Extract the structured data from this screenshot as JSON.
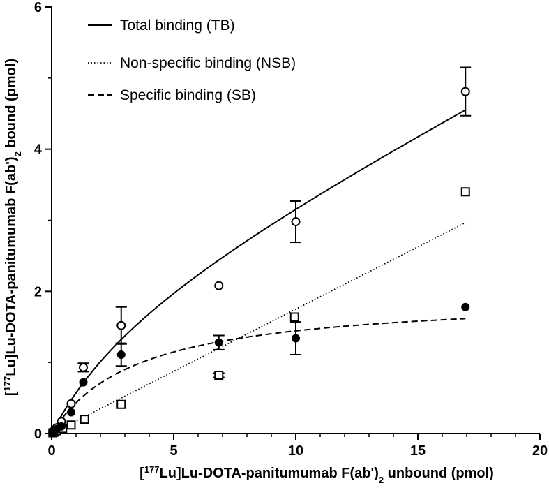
{
  "chart_data": {
    "type": "scatter",
    "title": "",
    "xlabel": {
      "parts": [
        {
          "text": "[",
          "style": "normal"
        },
        {
          "text": "177",
          "style": "sup"
        },
        {
          "text": "Lu]Lu-DOTA-panitumumab F(ab')",
          "style": "normal"
        },
        {
          "text": "2",
          "style": "sub"
        },
        {
          "text": " unbound (pmol)",
          "style": "normal"
        }
      ]
    },
    "ylabel": {
      "parts": [
        {
          "text": "[",
          "style": "normal"
        },
        {
          "text": "177",
          "style": "sup"
        },
        {
          "text": "Lu]Lu-DOTA-panitumumab F(ab')",
          "style": "normal"
        },
        {
          "text": "2",
          "style": "sub"
        },
        {
          "text": " bound (pmol)",
          "style": "normal"
        }
      ]
    },
    "xlim": [
      0,
      20
    ],
    "ylim": [
      0,
      6
    ],
    "xticks": [
      0,
      5,
      10,
      15,
      20
    ],
    "yticks": [
      0,
      2,
      4,
      6
    ],
    "grid": false,
    "legend_position": "top-left",
    "series": [
      {
        "name": "Total binding (TB)",
        "marker": "open-circle",
        "line_style": "solid",
        "points": [
          {
            "x": 0.05,
            "y": 0.02
          },
          {
            "x": 0.1,
            "y": 0.04
          },
          {
            "x": 0.2,
            "y": 0.08
          },
          {
            "x": 0.4,
            "y": 0.17
          },
          {
            "x": 0.8,
            "y": 0.42
          },
          {
            "x": 1.3,
            "y": 0.93,
            "err": 0.06
          },
          {
            "x": 2.85,
            "y": 1.52,
            "err": 0.26
          },
          {
            "x": 6.85,
            "y": 2.08
          },
          {
            "x": 10.0,
            "y": 2.98,
            "err": 0.29
          },
          {
            "x": 16.95,
            "y": 4.81,
            "err": 0.34
          }
        ],
        "curve": {
          "model": "one-site total",
          "bmax": 1.95,
          "kd": 3.9,
          "ns": 0.175,
          "x_range": [
            0,
            16.95
          ]
        }
      },
      {
        "name": "Non-specific binding (NSB)",
        "marker": "open-square",
        "line_style": "dotted",
        "points": [
          {
            "x": 0.05,
            "y": 0.01
          },
          {
            "x": 0.1,
            "y": 0.02
          },
          {
            "x": 0.2,
            "y": 0.04
          },
          {
            "x": 0.45,
            "y": 0.07
          },
          {
            "x": 0.8,
            "y": 0.12
          },
          {
            "x": 1.35,
            "y": 0.2
          },
          {
            "x": 2.85,
            "y": 0.41
          },
          {
            "x": 6.85,
            "y": 0.82,
            "err": 0.03
          },
          {
            "x": 9.95,
            "y": 1.64
          },
          {
            "x": 16.95,
            "y": 3.4
          }
        ],
        "curve": {
          "model": "linear",
          "slope": 0.175,
          "x_range": [
            0,
            16.95
          ]
        }
      },
      {
        "name": "Specific binding (SB)",
        "marker": "filled-circle",
        "line_style": "dashed",
        "points": [
          {
            "x": 0.05,
            "y": 0.01
          },
          {
            "x": 0.1,
            "y": 0.03
          },
          {
            "x": 0.2,
            "y": 0.06
          },
          {
            "x": 0.4,
            "y": 0.1
          },
          {
            "x": 0.8,
            "y": 0.3
          },
          {
            "x": 1.3,
            "y": 0.72
          },
          {
            "x": 2.85,
            "y": 1.11,
            "err": 0.16
          },
          {
            "x": 6.85,
            "y": 1.28,
            "err": 0.1
          },
          {
            "x": 10.0,
            "y": 1.34,
            "err": 0.23
          },
          {
            "x": 16.95,
            "y": 1.78
          }
        ],
        "curve": {
          "model": "one-site specific",
          "bmax": 1.95,
          "kd": 3.5,
          "x_range": [
            0,
            16.95
          ]
        }
      }
    ]
  }
}
